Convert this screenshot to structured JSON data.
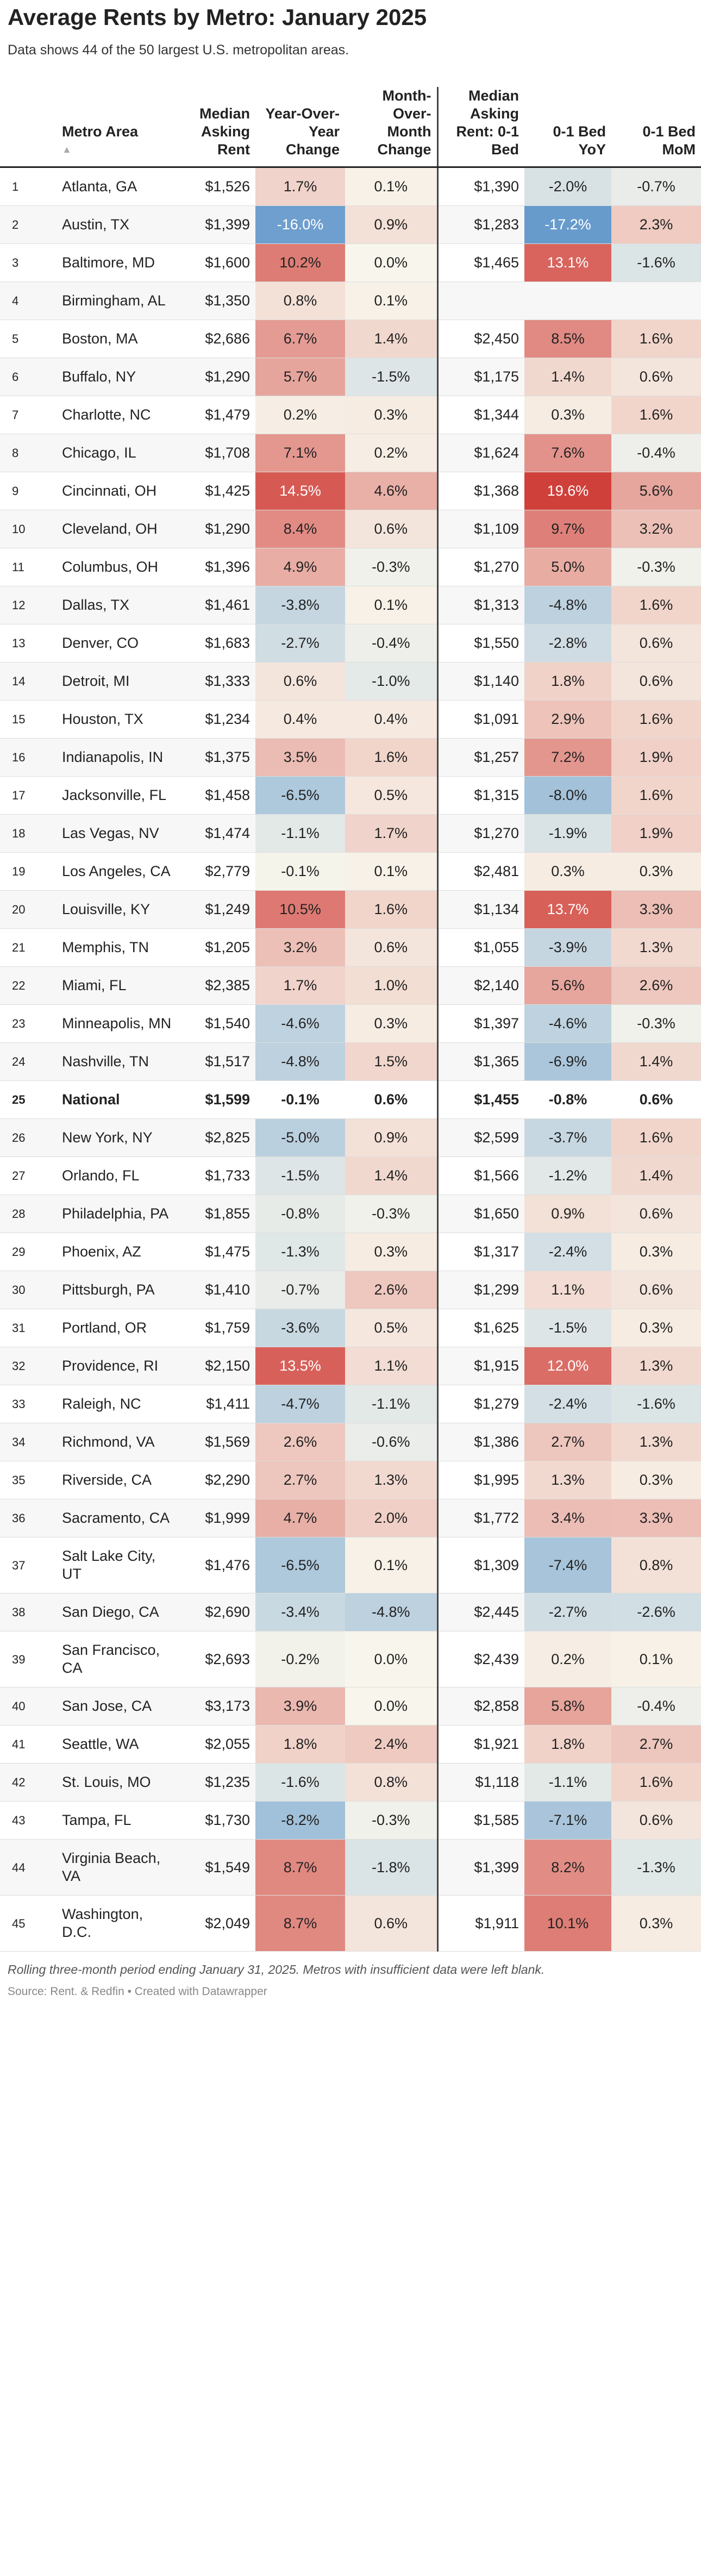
{
  "header": {
    "title": "Average Rents by Metro: January 2025",
    "subtitle": "Data shows 44 of the 50 largest U.S. metropolitan areas."
  },
  "table": {
    "columns": [
      "Metro Area",
      "Median Asking Rent",
      "Year-Over-Year Change",
      "Month-Over-Month Change",
      "Median Asking Rent: 0-1 Bed",
      "0-1 Bed YoY",
      "0-1 Bed MoM"
    ],
    "highlight_row": 24,
    "rows": [
      [
        "1",
        "Atlanta, GA",
        "$1,526",
        "1.7%",
        "0.1%",
        "$1,390",
        "-2.0%",
        "-0.7%"
      ],
      [
        "2",
        "Austin, TX",
        "$1,399",
        "-16.0%",
        "0.9%",
        "$1,283",
        "-17.2%",
        "2.3%"
      ],
      [
        "3",
        "Baltimore, MD",
        "$1,600",
        "10.2%",
        "0.0%",
        "$1,465",
        "13.1%",
        "-1.6%"
      ],
      [
        "4",
        "Birmingham, AL",
        "$1,350",
        "0.8%",
        "0.1%",
        null,
        null,
        null
      ],
      [
        "5",
        "Boston, MA",
        "$2,686",
        "6.7%",
        "1.4%",
        "$2,450",
        "8.5%",
        "1.6%"
      ],
      [
        "6",
        "Buffalo, NY",
        "$1,290",
        "5.7%",
        "-1.5%",
        "$1,175",
        "1.4%",
        "0.6%"
      ],
      [
        "7",
        "Charlotte, NC",
        "$1,479",
        "0.2%",
        "0.3%",
        "$1,344",
        "0.3%",
        "1.6%"
      ],
      [
        "8",
        "Chicago, IL",
        "$1,708",
        "7.1%",
        "0.2%",
        "$1,624",
        "7.6%",
        "-0.4%"
      ],
      [
        "9",
        "Cincinnati, OH",
        "$1,425",
        "14.5%",
        "4.6%",
        "$1,368",
        "19.6%",
        "5.6%"
      ],
      [
        "10",
        "Cleveland, OH",
        "$1,290",
        "8.4%",
        "0.6%",
        "$1,109",
        "9.7%",
        "3.2%"
      ],
      [
        "11",
        "Columbus, OH",
        "$1,396",
        "4.9%",
        "-0.3%",
        "$1,270",
        "5.0%",
        "-0.3%"
      ],
      [
        "12",
        "Dallas, TX",
        "$1,461",
        "-3.8%",
        "0.1%",
        "$1,313",
        "-4.8%",
        "1.6%"
      ],
      [
        "13",
        "Denver, CO",
        "$1,683",
        "-2.7%",
        "-0.4%",
        "$1,550",
        "-2.8%",
        "0.6%"
      ],
      [
        "14",
        "Detroit, MI",
        "$1,333",
        "0.6%",
        "-1.0%",
        "$1,140",
        "1.8%",
        "0.6%"
      ],
      [
        "15",
        "Houston, TX",
        "$1,234",
        "0.4%",
        "0.4%",
        "$1,091",
        "2.9%",
        "1.6%"
      ],
      [
        "16",
        "Indianapolis, IN",
        "$1,375",
        "3.5%",
        "1.6%",
        "$1,257",
        "7.2%",
        "1.9%"
      ],
      [
        "17",
        "Jacksonville, FL",
        "$1,458",
        "-6.5%",
        "0.5%",
        "$1,315",
        "-8.0%",
        "1.6%"
      ],
      [
        "18",
        "Las Vegas, NV",
        "$1,474",
        "-1.1%",
        "1.7%",
        "$1,270",
        "-1.9%",
        "1.9%"
      ],
      [
        "19",
        "Los Angeles, CA",
        "$2,779",
        "-0.1%",
        "0.1%",
        "$2,481",
        "0.3%",
        "0.3%"
      ],
      [
        "20",
        "Louisville, KY",
        "$1,249",
        "10.5%",
        "1.6%",
        "$1,134",
        "13.7%",
        "3.3%"
      ],
      [
        "21",
        "Memphis, TN",
        "$1,205",
        "3.2%",
        "0.6%",
        "$1,055",
        "-3.9%",
        "1.3%"
      ],
      [
        "22",
        "Miami, FL",
        "$2,385",
        "1.7%",
        "1.0%",
        "$2,140",
        "5.6%",
        "2.6%"
      ],
      [
        "23",
        "Minneapolis, MN",
        "$1,540",
        "-4.6%",
        "0.3%",
        "$1,397",
        "-4.6%",
        "-0.3%"
      ],
      [
        "24",
        "Nashville, TN",
        "$1,517",
        "-4.8%",
        "1.5%",
        "$1,365",
        "-6.9%",
        "1.4%"
      ],
      [
        "25",
        "National",
        "$1,599",
        "-0.1%",
        "0.6%",
        "$1,455",
        "-0.8%",
        "0.6%"
      ],
      [
        "26",
        "New York, NY",
        "$2,825",
        "-5.0%",
        "0.9%",
        "$2,599",
        "-3.7%",
        "1.6%"
      ],
      [
        "27",
        "Orlando, FL",
        "$1,733",
        "-1.5%",
        "1.4%",
        "$1,566",
        "-1.2%",
        "1.4%"
      ],
      [
        "28",
        "Philadelphia, PA",
        "$1,855",
        "-0.8%",
        "-0.3%",
        "$1,650",
        "0.9%",
        "0.6%"
      ],
      [
        "29",
        "Phoenix, AZ",
        "$1,475",
        "-1.3%",
        "0.3%",
        "$1,317",
        "-2.4%",
        "0.3%"
      ],
      [
        "30",
        "Pittsburgh, PA",
        "$1,410",
        "-0.7%",
        "2.6%",
        "$1,299",
        "1.1%",
        "0.6%"
      ],
      [
        "31",
        "Portland, OR",
        "$1,759",
        "-3.6%",
        "0.5%",
        "$1,625",
        "-1.5%",
        "0.3%"
      ],
      [
        "32",
        "Providence, RI",
        "$2,150",
        "13.5%",
        "1.1%",
        "$1,915",
        "12.0%",
        "1.3%"
      ],
      [
        "33",
        "Raleigh, NC",
        "$1,411",
        "-4.7%",
        "-1.1%",
        "$1,279",
        "-2.4%",
        "-1.6%"
      ],
      [
        "34",
        "Richmond, VA",
        "$1,569",
        "2.6%",
        "-0.6%",
        "$1,386",
        "2.7%",
        "1.3%"
      ],
      [
        "35",
        "Riverside, CA",
        "$2,290",
        "2.7%",
        "1.3%",
        "$1,995",
        "1.3%",
        "0.3%"
      ],
      [
        "36",
        "Sacramento, CA",
        "$1,999",
        "4.7%",
        "2.0%",
        "$1,772",
        "3.4%",
        "3.3%"
      ],
      [
        "37",
        "Salt Lake City, UT",
        "$1,476",
        "-6.5%",
        "0.1%",
        "$1,309",
        "-7.4%",
        "0.8%"
      ],
      [
        "38",
        "San Diego, CA",
        "$2,690",
        "-3.4%",
        "-4.8%",
        "$2,445",
        "-2.7%",
        "-2.6%"
      ],
      [
        "39",
        "San Francisco, CA",
        "$2,693",
        "-0.2%",
        "0.0%",
        "$2,439",
        "0.2%",
        "0.1%"
      ],
      [
        "40",
        "San Jose, CA",
        "$3,173",
        "3.9%",
        "0.0%",
        "$2,858",
        "5.8%",
        "-0.4%"
      ],
      [
        "41",
        "Seattle, WA",
        "$2,055",
        "1.8%",
        "2.4%",
        "$1,921",
        "1.8%",
        "2.7%"
      ],
      [
        "42",
        "St. Louis, MO",
        "$1,235",
        "-1.6%",
        "0.8%",
        "$1,118",
        "-1.1%",
        "1.6%"
      ],
      [
        "43",
        "Tampa, FL",
        "$1,730",
        "-8.2%",
        "-0.3%",
        "$1,585",
        "-7.1%",
        "0.6%"
      ],
      [
        "44",
        "Virginia Beach, VA",
        "$1,549",
        "8.7%",
        "-1.8%",
        "$1,399",
        "8.2%",
        "-1.3%"
      ],
      [
        "45",
        "Washington, D.C.",
        "$2,049",
        "8.7%",
        "0.6%",
        "$1,911",
        "10.1%",
        "0.3%"
      ]
    ]
  },
  "footer": {
    "note": "Rolling three-month period ending January 31, 2025. Metros with insufficient data were left blank.",
    "source": "Source: Rent. & Redfin • Created with Datawrapper"
  }
}
